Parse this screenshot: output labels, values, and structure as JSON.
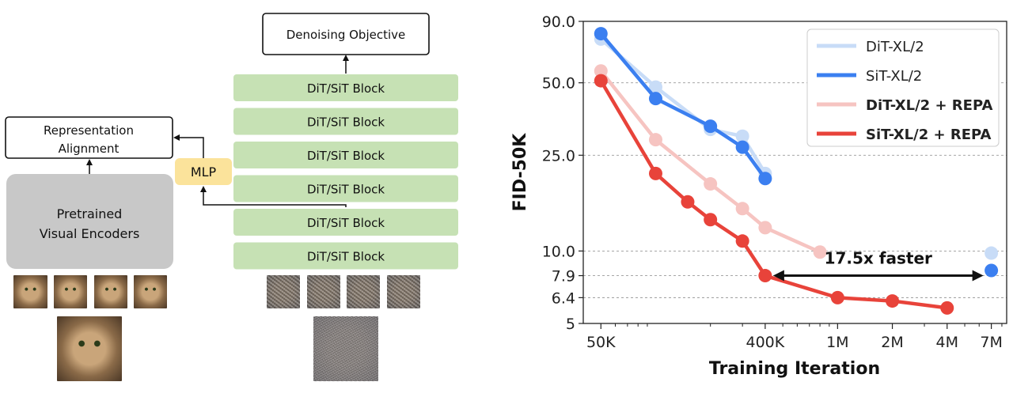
{
  "diagram": {
    "objective_label": "Denoising Objective",
    "blocks": [
      "DiT/SiT Block",
      "DiT/SiT Block",
      "DiT/SiT Block",
      "DiT/SiT Block",
      "DiT/SiT Block",
      "DiT/SiT Block"
    ],
    "alignment_label_line1": "Representation",
    "alignment_label_line2": "Alignment",
    "mlp_label": "MLP",
    "encoder_label_line1": "Pretrained",
    "encoder_label_line2": "Visual Encoders",
    "colors": {
      "block": "#c6e1b4",
      "mlp": "#fbe39b",
      "encoder": "#c8c8c8"
    }
  },
  "chart_data": {
    "type": "line",
    "xscale": "log",
    "yscale": "log",
    "xlabel": "Training Iteration",
    "ylabel": "FID-50K",
    "x_ticks": [
      "50K",
      "400K",
      "1M",
      "2M",
      "4M",
      "7M"
    ],
    "x_tick_values": [
      50000,
      400000,
      1000000,
      2000000,
      4000000,
      7000000
    ],
    "y_ticks": [
      "90.0",
      "50.0",
      "25.0",
      "10.0",
      "7.9",
      "6.4",
      "5"
    ],
    "y_tick_values": [
      90.0,
      50.0,
      25.0,
      10.0,
      7.9,
      6.4,
      5
    ],
    "xlim": [
      40000,
      8500000
    ],
    "ylim": [
      5,
      90
    ],
    "grid": "horizontal dashed",
    "legend_position": "top-right",
    "series": [
      {
        "name": "DiT-XL/2",
        "color": "#c8dcf7",
        "bold": false,
        "x": [
          50000,
          100000,
          200000,
          300000,
          400000,
          7000000
        ],
        "y": [
          76,
          48,
          32,
          30,
          21,
          9.8
        ]
      },
      {
        "name": "SiT-XL/2",
        "color": "#3b7ff0",
        "bold": false,
        "x": [
          50000,
          100000,
          200000,
          300000,
          400000,
          7000000
        ],
        "y": [
          80,
          43,
          33,
          27,
          20,
          8.3
        ]
      },
      {
        "name": "DiT-XL/2 + REPA",
        "color": "#f6c4c1",
        "bold": true,
        "x": [
          50000,
          100000,
          200000,
          300000,
          400000,
          800000
        ],
        "y": [
          56,
          29,
          19,
          15,
          12.5,
          9.9
        ]
      },
      {
        "name": "SiT-XL/2 + REPA",
        "color": "#e8433a",
        "bold": true,
        "x": [
          50000,
          100000,
          150000,
          200000,
          300000,
          400000,
          1000000,
          2000000,
          4000000
        ],
        "y": [
          51,
          21,
          16,
          13.5,
          11,
          7.9,
          6.4,
          6.2,
          5.8
        ]
      }
    ],
    "annotation": {
      "text": "17.5x faster",
      "from_x": 400000,
      "to_x": 7000000,
      "y": 7.9
    }
  }
}
